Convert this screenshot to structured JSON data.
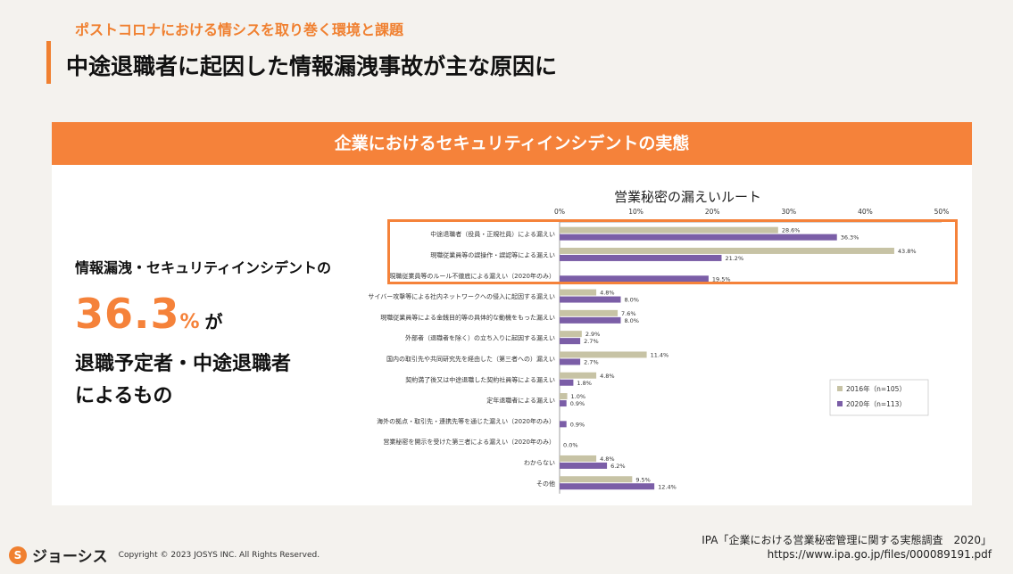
{
  "header": {
    "subtitle": "ポストコロナにおける情シスを取り巻く環境と課題",
    "title": "中途退職者に起因した情報漏洩事故が主な原因に"
  },
  "card": {
    "header": "企業におけるセキュリティインシデントの実態"
  },
  "summary": {
    "line1": "情報漏洩・セキュリティインシデントの",
    "number": "36.3",
    "unit": "%",
    "suffix": "が",
    "line3a": "退職予定者・中途退職者",
    "line3b": "によるもの"
  },
  "chart_data": {
    "type": "bar",
    "orientation": "horizontal",
    "title": "営業秘密の漏えいルート",
    "xlim": [
      0,
      50
    ],
    "x_ticks": [
      "0%",
      "10%",
      "20%",
      "30%",
      "40%",
      "50%"
    ],
    "categories": [
      "中途退職者（役員・正規社員）による漏えい",
      "現職従業員等の誤操作・誤認等による漏えい",
      "現職従業員等のルール不徹底による漏えい（2020年のみ）",
      "サイバー攻撃等による社内ネットワークへの侵入に起因する漏えい",
      "現職従業員等による金銭目的等の具体的な動機をもった漏えい",
      "外部者（退職者を除く）の立ち入りに起因する漏えい",
      "国内の取引先や共同研究先を経由した（第三者への）漏えい",
      "契約満了後又は中途退職した契約社員等による漏えい",
      "定年退職者による漏えい",
      "海外の拠点・取引先・連携先等を通じた漏えい（2020年のみ）",
      "営業秘密を開示を受けた第三者による漏えい（2020年のみ）",
      "わからない",
      "その他"
    ],
    "series": [
      {
        "name": "2016年（n=105）",
        "color": "#c7c3a5",
        "values": [
          28.6,
          43.8,
          null,
          4.8,
          7.6,
          2.9,
          11.4,
          4.8,
          1.0,
          null,
          null,
          4.8,
          9.5
        ],
        "labels": [
          "28.6%",
          "43.8%",
          "",
          "4.8%",
          "7.6%",
          "2.9%",
          "11.4%",
          "4.8%",
          "1.0%",
          "",
          "",
          "4.8%",
          "9.5%"
        ]
      },
      {
        "name": "2020年（n=113）",
        "color": "#7b5ea7",
        "values": [
          36.3,
          21.2,
          19.5,
          8.0,
          8.0,
          2.7,
          2.7,
          1.8,
          0.9,
          0.9,
          0.0,
          6.2,
          12.4
        ],
        "labels": [
          "36.3%",
          "21.2%",
          "19.5%",
          "8.0%",
          "8.0%",
          "2.7%",
          "2.7%",
          "1.8%",
          "0.9%",
          "0.9%",
          "0.0%",
          "6.2%",
          "12.4%"
        ]
      }
    ],
    "grid": false,
    "legend_position": "bottom-right",
    "highlight_note_color": "#f5823a"
  },
  "footer": {
    "logo_text": "ジョーシス",
    "logo_mark": "S",
    "copyright": "Copyright © 2023 JOSYS INC. All Rights Reserved.",
    "source_line1": "IPA「企業における営業秘密管理に関する実態調査　2020」",
    "source_line2": "https://www.ipa.go.jp/files/000089191.pdf"
  }
}
